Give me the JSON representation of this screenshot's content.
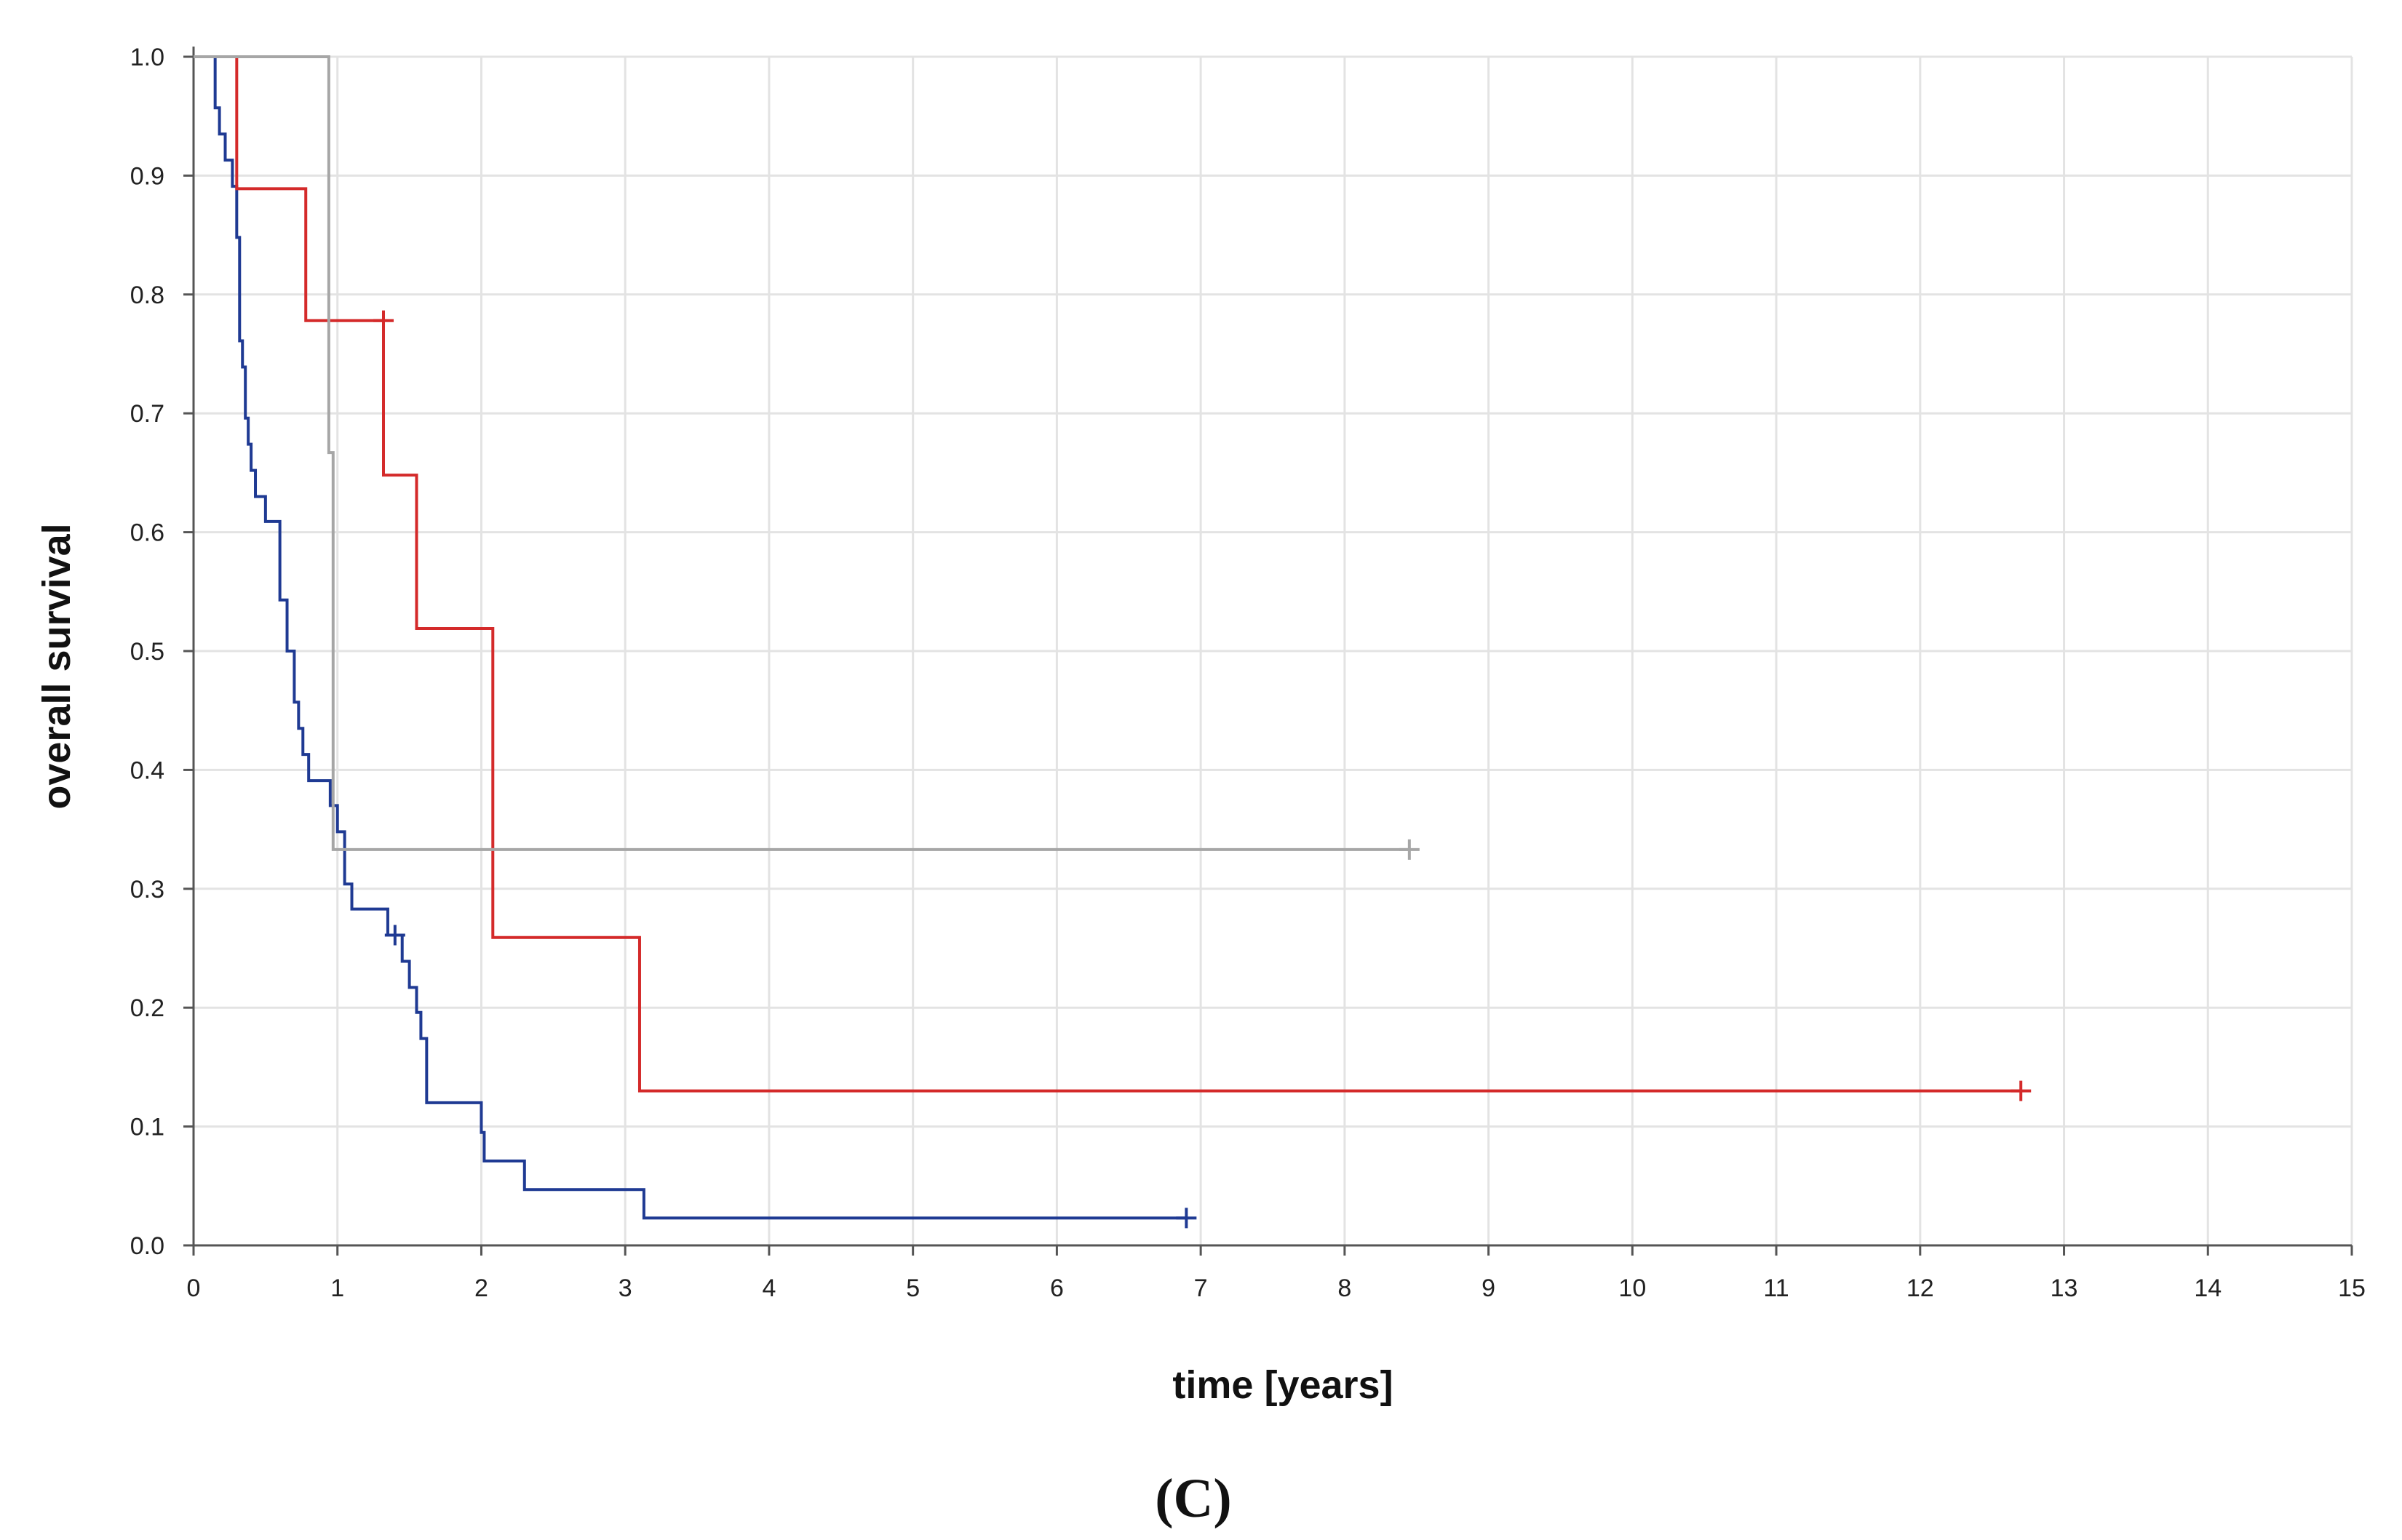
{
  "panel_label": "(C)",
  "chart_data": {
    "type": "line",
    "subtype": "kaplan-meier step",
    "xlabel": "time [years]",
    "ylabel": "overall survival",
    "xlim": [
      0,
      15
    ],
    "ylim": [
      0,
      1.0
    ],
    "x_ticks": [
      "0",
      "1",
      "2",
      "3",
      "4",
      "5",
      "6",
      "7",
      "8",
      "9",
      "10",
      "11",
      "12",
      "13",
      "14",
      "15"
    ],
    "y_ticks": [
      "0.0",
      "0.1",
      "0.2",
      "0.3",
      "0.4",
      "0.5",
      "0.6",
      "0.7",
      "0.8",
      "0.9",
      "1.0"
    ],
    "grid": true,
    "legend": "none",
    "series": [
      {
        "color": "#1f3a93",
        "x": [
          0,
          0.15,
          0.18,
          0.22,
          0.27,
          0.3,
          0.32,
          0.34,
          0.36,
          0.38,
          0.4,
          0.43,
          0.46,
          0.5,
          0.6,
          0.65,
          0.7,
          0.73,
          0.76,
          0.8,
          0.95,
          1.0,
          1.05,
          1.1,
          1.35,
          1.45,
          1.5,
          1.55,
          1.58,
          1.62,
          2.0,
          2.02,
          2.3,
          3.13,
          6.9
        ],
        "y": [
          1.0,
          0.957,
          0.935,
          0.913,
          0.891,
          0.848,
          0.761,
          0.739,
          0.696,
          0.674,
          0.652,
          0.63,
          0.63,
          0.609,
          0.543,
          0.5,
          0.457,
          0.435,
          0.413,
          0.391,
          0.37,
          0.348,
          0.304,
          0.283,
          0.261,
          0.239,
          0.217,
          0.196,
          0.174,
          0.12,
          0.095,
          0.071,
          0.047,
          0.023,
          0.023
        ],
        "censored": [
          [
            1.4,
            0.261
          ],
          [
            6.9,
            0.023
          ]
        ]
      },
      {
        "color": "#d42a2a",
        "x": [
          0,
          0.3,
          0.78,
          1.32,
          1.55,
          2.08,
          3.1,
          12.7
        ],
        "y": [
          1.0,
          0.889,
          0.778,
          0.648,
          0.519,
          0.259,
          0.13,
          0.13
        ],
        "censored": [
          [
            1.32,
            0.778
          ],
          [
            12.7,
            0.13
          ]
        ]
      },
      {
        "color": "#a6a6a6",
        "x": [
          0,
          0.94,
          0.97,
          8.45
        ],
        "y": [
          1.0,
          0.667,
          0.333,
          0.333
        ],
        "censored": [
          [
            8.45,
            0.333
          ]
        ]
      }
    ]
  }
}
